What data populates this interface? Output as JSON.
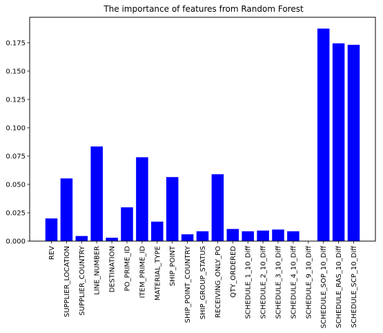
{
  "chart_data": {
    "type": "bar",
    "title": "The importance of features from Random Forest",
    "xlabel": "",
    "ylabel": "",
    "ylim": [
      0,
      0.1975
    ],
    "yticks": [
      0.0,
      0.025,
      0.05,
      0.075,
      0.1,
      0.125,
      0.15,
      0.175
    ],
    "ytick_labels": [
      "0.000",
      "0.025",
      "0.050",
      "0.075",
      "0.100",
      "0.125",
      "0.150",
      "0.175"
    ],
    "bar_color": "#0000ff",
    "categories": [
      "REV",
      "SUPPLIER_LOCATION",
      "SUPPLIER_COUNTRY",
      "LINE_NUMBER",
      "DESTINATION",
      "PO_PRIME_ID",
      "ITEM_PRIME_ID",
      "MATERIAL_TYPE",
      "SHIP_POINT",
      "SHIP_POINT_COUNTRY",
      "SHIP_GROUP_STATUS",
      "RECEIVING_ONLY_PO",
      "QTY_ORDERED",
      "SCHEDULE_1_10_Diff",
      "SCHEDULE_2_10_Diff",
      "SCHEDULE_3_10_Diff",
      "SCHEDULE_4_10_Diff",
      "SCHEDULE_9_10_Diff",
      "SCHEDULE_SOP_10_Diff",
      "SCHEDULE_RAS_10_Diff",
      "SCHEDULE_SCP_10_Diff"
    ],
    "values": [
      0.02,
      0.0553,
      0.0045,
      0.0835,
      0.003,
      0.0298,
      0.074,
      0.0172,
      0.0565,
      0.006,
      0.0087,
      0.059,
      0.0107,
      0.0087,
      0.0093,
      0.0102,
      0.0087,
      0.0,
      0.1875,
      0.1745,
      0.1732
    ],
    "grid": false,
    "legend": "none"
  }
}
